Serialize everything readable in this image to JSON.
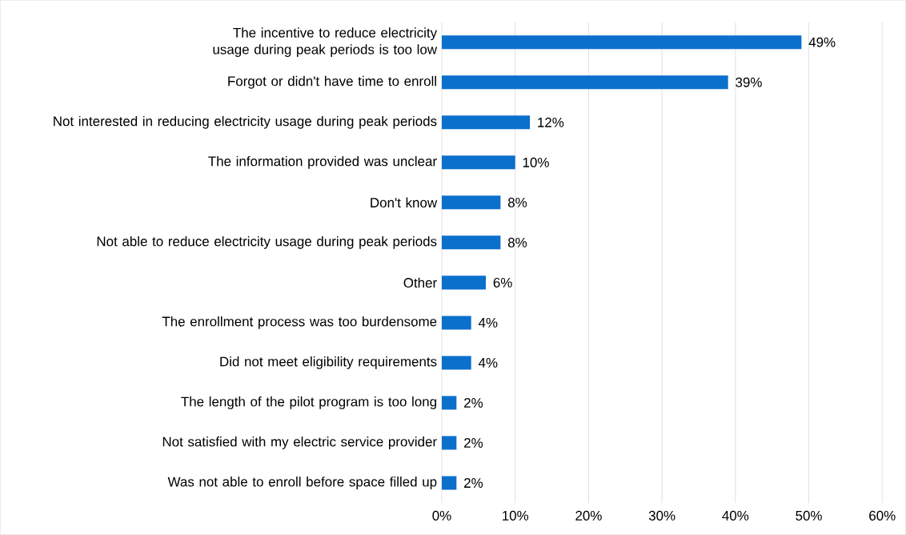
{
  "chart_data": {
    "type": "bar",
    "orientation": "horizontal",
    "categories": [
      "The incentive to reduce electricity usage during peak periods is too low",
      "Forgot or didn't have time to enroll",
      "Not interested in reducing electricity usage during peak periods",
      "The information provided was unclear",
      "Don't know",
      "Not able to reduce electricity usage during peak periods",
      "Other",
      "The enrollment process was too burdensome",
      "Did not meet eligibility requirements",
      "The length of the pilot program is too long",
      "Not satisfied with my electric service provider",
      "Was not able to enroll before space filled up"
    ],
    "values": [
      49,
      39,
      12,
      10,
      8,
      8,
      6,
      4,
      4,
      2,
      2,
      2
    ],
    "value_labels": [
      "49%",
      "39%",
      "12%",
      "10%",
      "8%",
      "8%",
      "6%",
      "4%",
      "4%",
      "2%",
      "2%",
      "2%"
    ],
    "color": "#0b6fcc",
    "xlim": [
      0,
      60
    ],
    "xticks": [
      {
        "value": 0,
        "label": "0%"
      },
      {
        "value": 10,
        "label": "10%"
      },
      {
        "value": 20,
        "label": "20%"
      },
      {
        "value": 30,
        "label": "30%"
      },
      {
        "value": 40,
        "label": "40%"
      },
      {
        "value": 50,
        "label": "50%"
      },
      {
        "value": 60,
        "label": "60%"
      }
    ],
    "grid": "x"
  }
}
